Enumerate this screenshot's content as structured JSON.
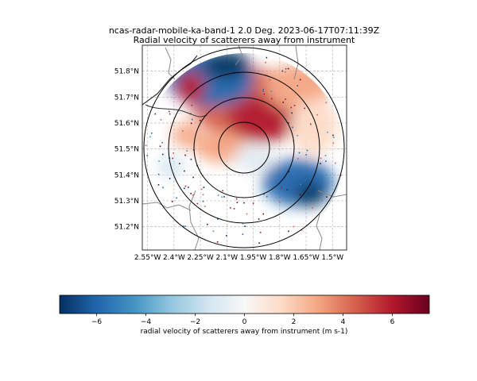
{
  "chart_data": {
    "type": "heatmap",
    "title": "ncas-radar-mobile-ka-band-1 2.0 Deg. 2023-06-17T07:11:39Z",
    "subtitle": "Radial velocity of scatterers away from instrument",
    "x_ticks": [
      "2.55°W",
      "2.4°W",
      "2.25°W",
      "2.1°W",
      "1.95°W",
      "1.8°W",
      "1.65°W",
      "1.5°W"
    ],
    "x_tick_values": [
      -2.55,
      -2.4,
      -2.25,
      -2.1,
      -1.95,
      -1.8,
      -1.65,
      -1.5
    ],
    "y_ticks": [
      "51.2°N",
      "51.3°N",
      "51.4°N",
      "51.5°N",
      "51.6°N",
      "51.7°N",
      "51.8°N"
    ],
    "y_tick_values": [
      51.2,
      51.3,
      51.4,
      51.5,
      51.6,
      51.7,
      51.8
    ],
    "xlim": [
      -2.58,
      -1.42
    ],
    "ylim": [
      51.11,
      51.9
    ],
    "radar_center": [
      -1.95,
      51.515
    ],
    "range_rings_km": [
      10,
      20,
      30
    ],
    "grid": true,
    "colormap": "RdBu_r",
    "colorbar": {
      "label": "radial velocity of scatterers away from instrument (m s-1)",
      "ticks": [
        "−6",
        "−4",
        "−2",
        "0",
        "2",
        "4",
        "6"
      ],
      "tick_values": [
        -6,
        -4,
        -2,
        0,
        2,
        4,
        6
      ],
      "vmin": -7.5,
      "vmax": 7.5,
      "orientation": "horizontal"
    },
    "field_regions": [
      {
        "region": "north-west",
        "velocity": -6.5
      },
      {
        "region": "north",
        "velocity": 5.5
      },
      {
        "region": "north-east",
        "velocity": 3.0
      },
      {
        "region": "west",
        "velocity": 4.0
      },
      {
        "region": "south-east",
        "velocity": -4.5
      },
      {
        "region": "south",
        "velocity": 0.5
      },
      {
        "region": "east",
        "velocity": 1.5
      }
    ],
    "colors": {
      "negative": "#053061",
      "neutral": "#f7f7f7",
      "positive": "#67001f"
    }
  }
}
